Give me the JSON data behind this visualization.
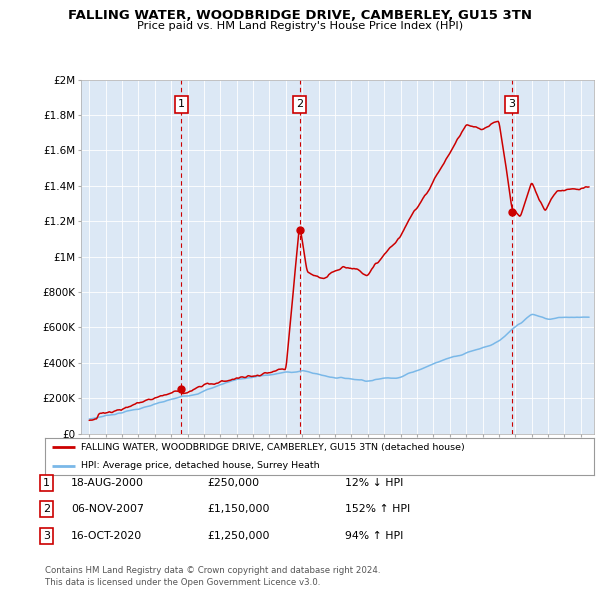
{
  "title": "FALLING WATER, WOODBRIDGE DRIVE, CAMBERLEY, GU15 3TN",
  "subtitle": "Price paid vs. HM Land Registry's House Price Index (HPI)",
  "ylim": [
    0,
    2000000
  ],
  "yticks": [
    0,
    200000,
    400000,
    600000,
    800000,
    1000000,
    1200000,
    1400000,
    1600000,
    1800000,
    2000000
  ],
  "ytick_labels": [
    "£0",
    "£200K",
    "£400K",
    "£600K",
    "£800K",
    "£1M",
    "£1.2M",
    "£1.4M",
    "£1.6M",
    "£1.8M",
    "£2M"
  ],
  "xlim_start": 1994.5,
  "xlim_end": 2025.8,
  "sale_dates_num": [
    2000.63,
    2007.84,
    2020.79
  ],
  "sale_prices": [
    250000,
    1150000,
    1250000
  ],
  "sale_labels": [
    "1",
    "2",
    "3"
  ],
  "legend_line1": "FALLING WATER, WOODBRIDGE DRIVE, CAMBERLEY, GU15 3TN (detached house)",
  "legend_line2": "HPI: Average price, detached house, Surrey Heath",
  "table_data": [
    [
      "1",
      "18-AUG-2000",
      "£250,000",
      "12% ↓ HPI"
    ],
    [
      "2",
      "06-NOV-2007",
      "£1,150,000",
      "152% ↑ HPI"
    ],
    [
      "3",
      "16-OCT-2020",
      "£1,250,000",
      "94% ↑ HPI"
    ]
  ],
  "footer": "Contains HM Land Registry data © Crown copyright and database right 2024.\nThis data is licensed under the Open Government Licence v3.0.",
  "hpi_color": "#7ab8e8",
  "price_color": "#cc0000",
  "bg_color": "#dce8f5",
  "grid_color": "#ffffff"
}
